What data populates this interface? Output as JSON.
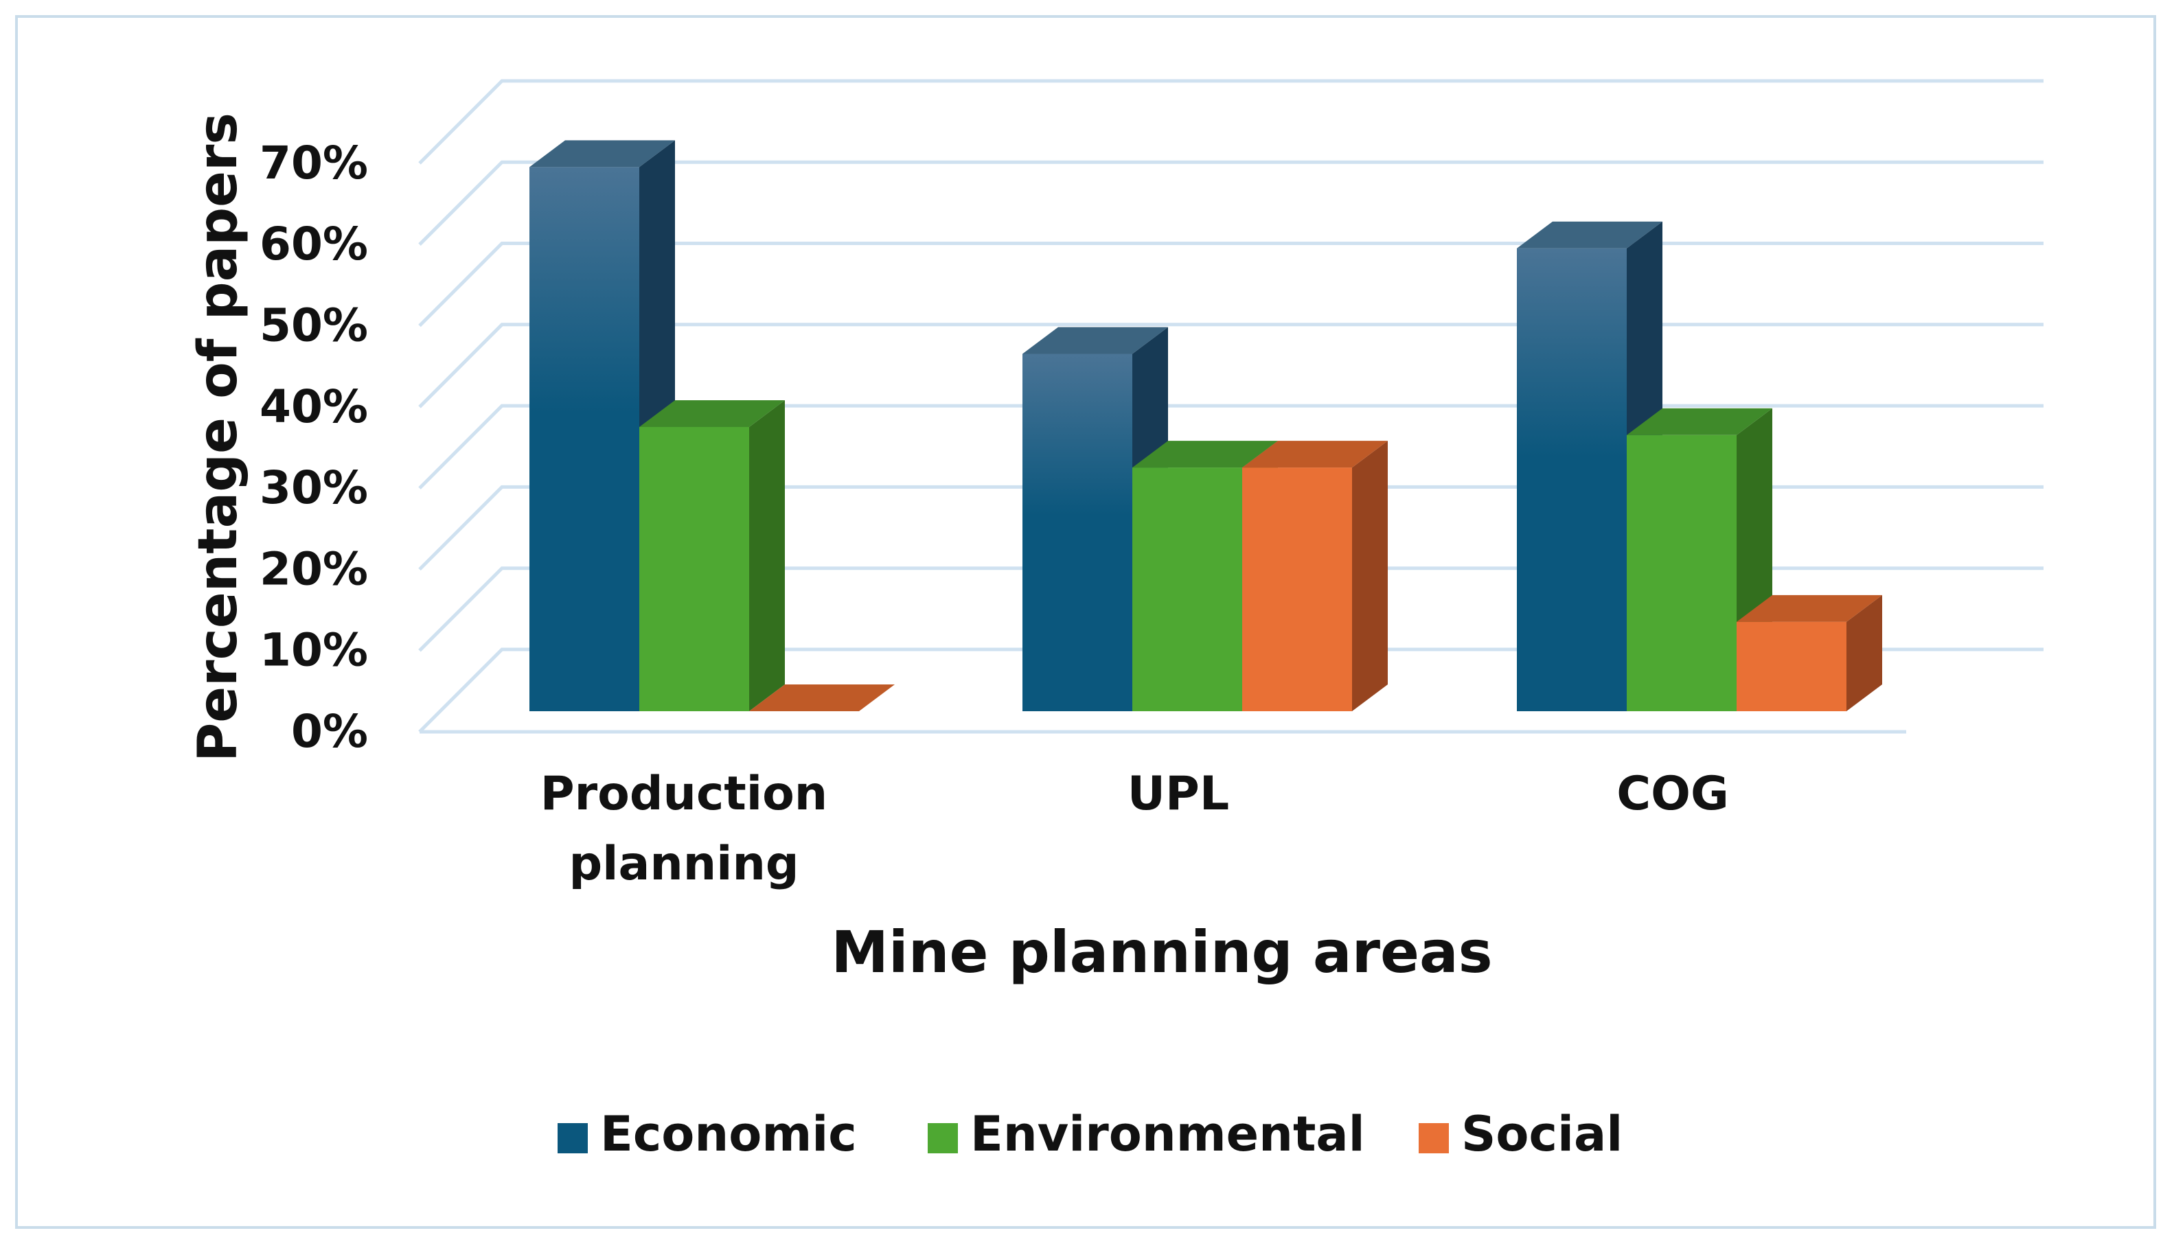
{
  "chart_data": {
    "type": "bar",
    "title": "",
    "xlabel": "Mine planning areas",
    "ylabel": "Percentage of papers",
    "categories": [
      "Production planning",
      "UPL",
      "COG"
    ],
    "category_lines": [
      [
        "Production",
        "planning"
      ],
      [
        "UPL"
      ],
      [
        "COG"
      ]
    ],
    "series": [
      {
        "name": "Economic",
        "values": [
          67,
          44,
          57
        ]
      },
      {
        "name": "Environmental",
        "values": [
          35,
          30,
          34
        ]
      },
      {
        "name": "Social",
        "values": [
          0,
          30,
          11
        ]
      }
    ],
    "ylim": [
      0,
      70
    ],
    "yticks": [
      0,
      10,
      20,
      30,
      40,
      50,
      60,
      70
    ],
    "ytick_labels": [
      "0%",
      "10%",
      "20%",
      "30%",
      "40%",
      "50%",
      "60%",
      "70%"
    ],
    "grid": true,
    "legend_position": "bottom",
    "colors": {
      "Economic": {
        "top": "#3c6480",
        "side": "#173a55",
        "front_top": "#4a7496",
        "front_bottom": "#0b577d"
      },
      "Environmental": {
        "top": "#3f8a2a",
        "side": "#336f1e",
        "front": "#4ea832"
      },
      "Social": {
        "top": "#bf5a27",
        "side": "#96441f",
        "front": "#e97035"
      },
      "grid": "#cfe1f0"
    }
  }
}
